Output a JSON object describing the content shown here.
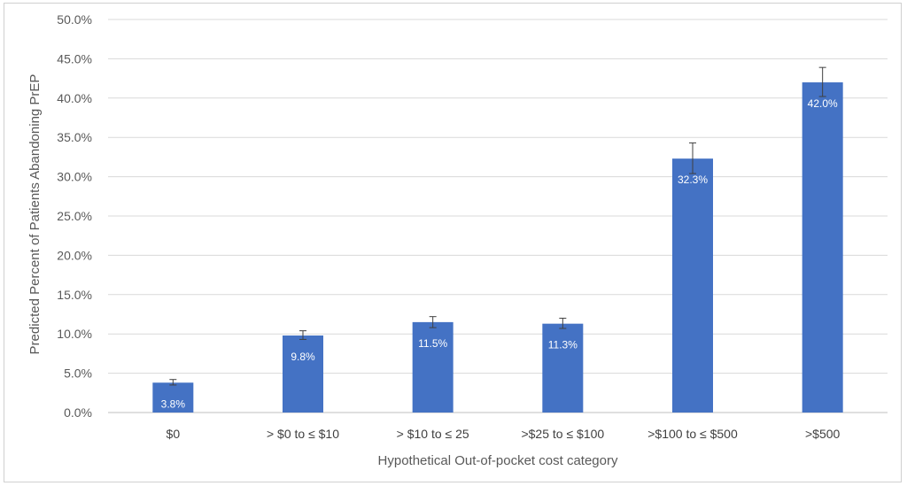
{
  "chart_data": {
    "type": "bar",
    "title": "",
    "xlabel": "Hypothetical Out-of-pocket cost category",
    "ylabel": "Predicted Percent of Patients Abandoning PrEP",
    "categories": [
      "$0",
      "> $0 to ≤ $10",
      "> $10  to ≤ 25",
      ">$25  to ≤ $100",
      ">$100 to ≤ $500",
      ">$500"
    ],
    "values": [
      3.8,
      9.8,
      11.5,
      11.3,
      32.3,
      42.0
    ],
    "data_labels": [
      "3.8%",
      "9.8%",
      "11.5%",
      "11.3%",
      "32.3%",
      "42.0%"
    ],
    "error_bars": [
      {
        "low": 3.5,
        "high": 4.2
      },
      {
        "low": 9.3,
        "high": 10.4
      },
      {
        "low": 10.8,
        "high": 12.2
      },
      {
        "low": 10.7,
        "high": 12.0
      },
      {
        "low": 30.4,
        "high": 34.3
      },
      {
        "low": 40.2,
        "high": 43.9
      }
    ],
    "ylim": [
      0,
      50
    ],
    "yticks": [
      0,
      5,
      10,
      15,
      20,
      25,
      30,
      35,
      40,
      45,
      50
    ],
    "ytick_labels": [
      "0.0%",
      "5.0%",
      "10.0%",
      "15.0%",
      "20.0%",
      "25.0%",
      "30.0%",
      "35.0%",
      "40.0%",
      "45.0%",
      "50.0%"
    ],
    "grid": true,
    "legend": "none",
    "colors": {
      "bar": "#4472C4",
      "gridline": "#d9d9d9",
      "axis": "#bfbfbf",
      "error_bar": "#404040",
      "data_label": "#ffffff"
    }
  }
}
